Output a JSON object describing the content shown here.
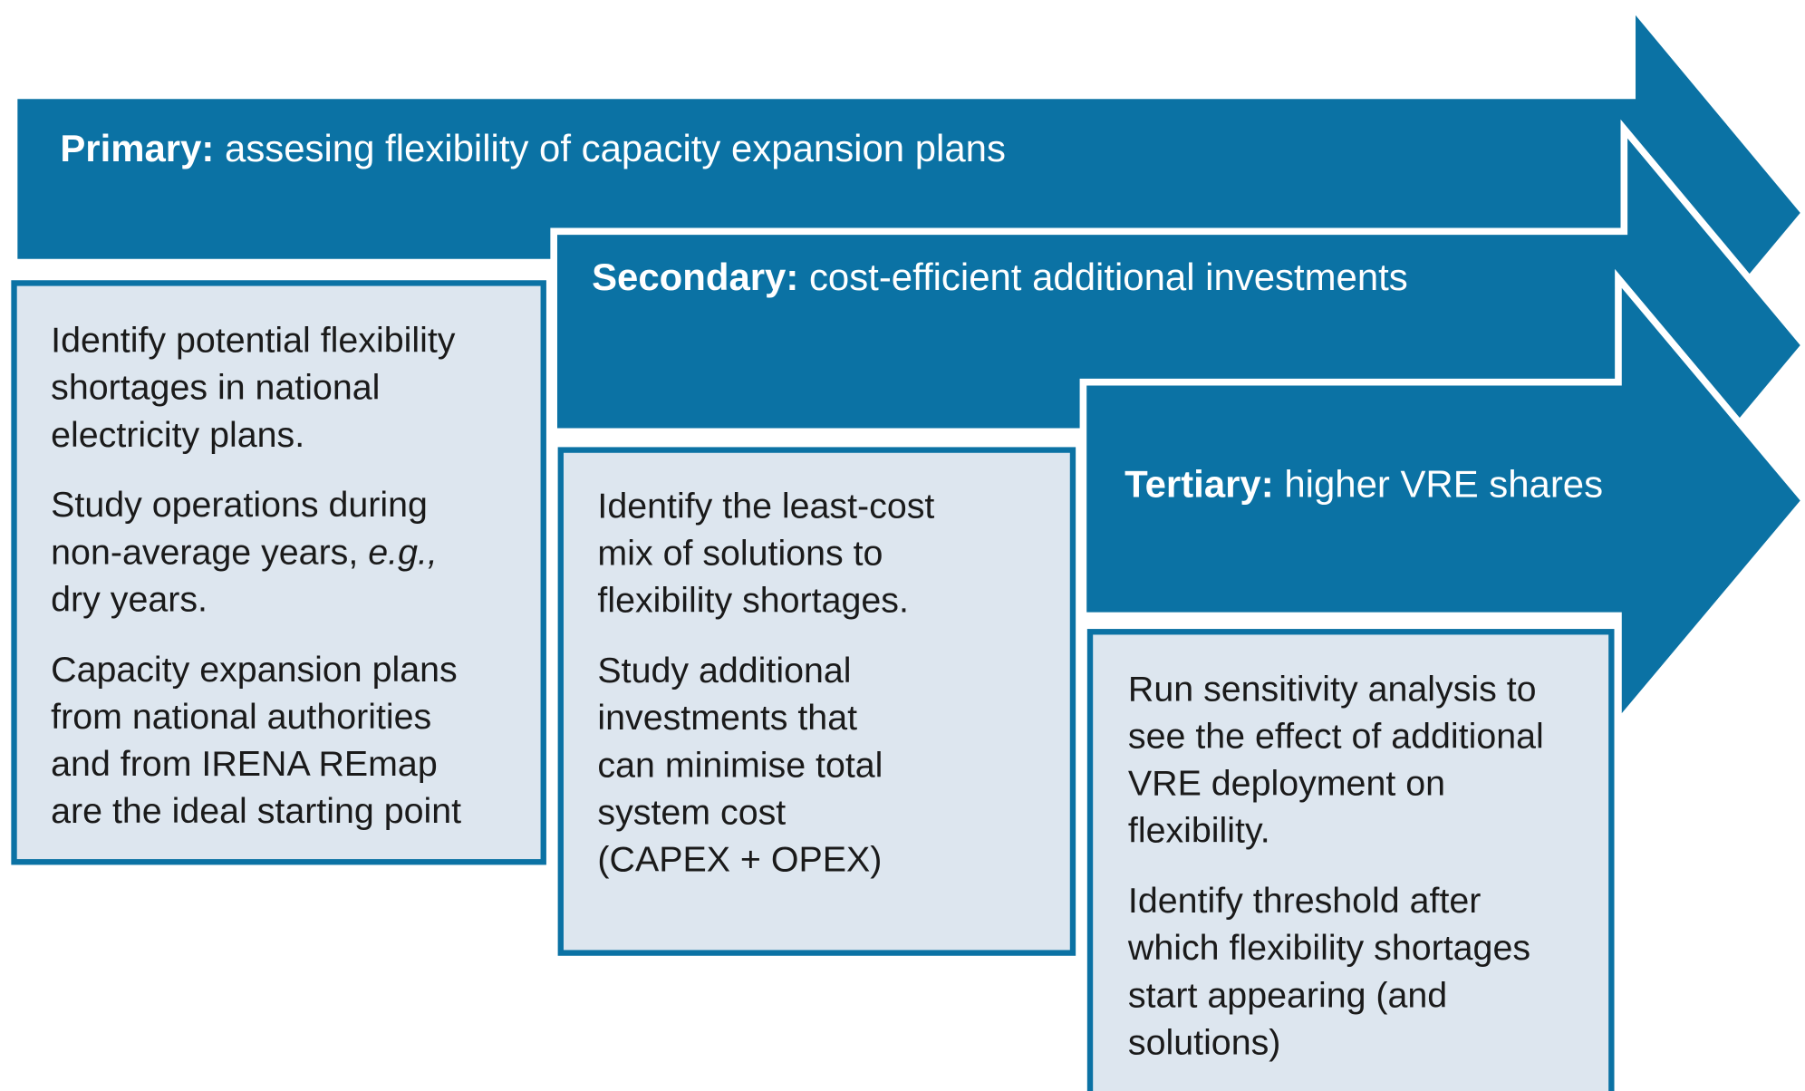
{
  "stages": [
    {
      "label": "Primary:",
      "text": "assesing flexibility of capacity expansion plans",
      "paragraphs": [
        [
          [
            {
              "text": "Identify potential flexibility"
            }
          ],
          [
            {
              "text": "shortages in national"
            }
          ],
          [
            {
              "text": "electricity plans."
            }
          ]
        ],
        [
          [
            {
              "text": "Study operations during"
            }
          ],
          [
            {
              "text": "non-average years, "
            },
            {
              "text": "e.g.,",
              "italic": true
            }
          ],
          [
            {
              "text": "dry years."
            }
          ]
        ],
        [
          [
            {
              "text": "Capacity expansion plans"
            }
          ],
          [
            {
              "text": "from national authorities"
            }
          ],
          [
            {
              "text": "and from IRENA REmap"
            }
          ],
          [
            {
              "text": "are the ideal starting point"
            }
          ]
        ]
      ]
    },
    {
      "label": "Secondary:",
      "text": "cost-efficient additional investments",
      "paragraphs": [
        [
          [
            {
              "text": "Identify the least-cost"
            }
          ],
          [
            {
              "text": "mix of solutions to"
            }
          ],
          [
            {
              "text": "flexibility shortages."
            }
          ]
        ],
        [
          [
            {
              "text": "Study additional"
            }
          ],
          [
            {
              "text": "investments that"
            }
          ],
          [
            {
              "text": "can minimise total"
            }
          ],
          [
            {
              "text": "system cost"
            }
          ],
          [
            {
              "text": "(CAPEX + OPEX)"
            }
          ]
        ]
      ]
    },
    {
      "label": "Tertiary:",
      "text": "higher VRE shares",
      "paragraphs": [
        [
          [
            {
              "text": "Run sensitivity analysis to"
            }
          ],
          [
            {
              "text": "see the effect of additional"
            }
          ],
          [
            {
              "text": "VRE deployment on"
            }
          ],
          [
            {
              "text": "flexibility."
            }
          ]
        ],
        [
          [
            {
              "text": "Identify threshold after"
            }
          ],
          [
            {
              "text": "which flexibility shortages"
            }
          ],
          [
            {
              "text": "start appearing (and"
            }
          ],
          [
            {
              "text": "solutions)"
            }
          ]
        ]
      ]
    }
  ]
}
